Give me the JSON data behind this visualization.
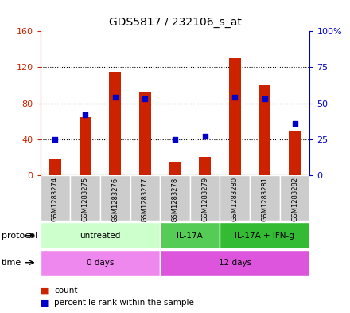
{
  "title": "GDS5817 / 232106_s_at",
  "samples": [
    "GSM1283274",
    "GSM1283275",
    "GSM1283276",
    "GSM1283277",
    "GSM1283278",
    "GSM1283279",
    "GSM1283280",
    "GSM1283281",
    "GSM1283282"
  ],
  "counts": [
    18,
    65,
    115,
    92,
    15,
    20,
    130,
    100,
    50
  ],
  "percentiles": [
    25,
    42,
    54,
    53,
    25,
    27,
    54,
    53,
    36
  ],
  "ylim_left": [
    0,
    160
  ],
  "ylim_right": [
    0,
    100
  ],
  "yticks_left": [
    0,
    40,
    80,
    120,
    160
  ],
  "yticks_right": [
    0,
    25,
    50,
    75,
    100
  ],
  "yticklabels_left": [
    "0",
    "40",
    "80",
    "120",
    "160"
  ],
  "yticklabels_right": [
    "0",
    "25",
    "50",
    "75",
    "100%"
  ],
  "protocol_groups": [
    {
      "label": "untreated",
      "start": 0,
      "end": 4,
      "color": "#ccffcc"
    },
    {
      "label": "IL-17A",
      "start": 4,
      "end": 6,
      "color": "#55cc55"
    },
    {
      "label": "IL-17A + IFN-g",
      "start": 6,
      "end": 9,
      "color": "#33bb33"
    }
  ],
  "time_groups": [
    {
      "label": "0 days",
      "start": 0,
      "end": 4,
      "color": "#ee88ee"
    },
    {
      "label": "12 days",
      "start": 4,
      "end": 9,
      "color": "#dd55dd"
    }
  ],
  "bar_color": "#cc2200",
  "dot_color": "#0000cc",
  "tick_label_color_left": "#cc2200",
  "tick_label_color_right": "#0000cc",
  "legend_count_label": "count",
  "legend_percentile_label": "percentile rank within the sample",
  "protocol_label": "protocol",
  "time_label": "time",
  "sample_box_color": "#cccccc",
  "bar_width": 0.4
}
